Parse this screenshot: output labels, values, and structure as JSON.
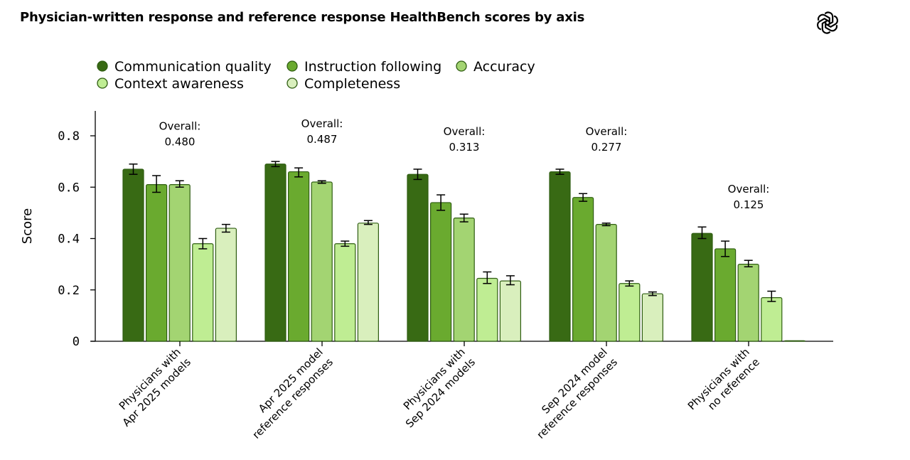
{
  "title": "Physician-written response and reference response HealthBench scores by axis",
  "logo_icon": "openai-logo-icon",
  "colors": {
    "Communication quality": "#386a14",
    "Instruction following": "#6aaa2f",
    "Accuracy": "#a3d472",
    "Context awareness": "#bfed93",
    "Completeness": "#d9efbd",
    "outline": "#2f5d12"
  },
  "chart_data": {
    "type": "bar",
    "title": "Physician-written response and reference response HealthBench scores by axis",
    "ylabel": "Score",
    "xlabel": "",
    "ylim": [
      0,
      0.9
    ],
    "yticks": [
      0,
      0.2,
      0.4,
      0.6,
      0.8
    ],
    "ytick_labels": [
      "0",
      "0.2",
      "0.4",
      "0.6",
      "0.8"
    ],
    "legend_position": "top-left",
    "grid": false,
    "categories": [
      [
        "Physicians with",
        "Apr 2025 models"
      ],
      [
        "Apr 2025 model",
        "reference responses"
      ],
      [
        "Physicians with",
        "Sep 2024 models"
      ],
      [
        "Sep 2024 model",
        "reference responses"
      ],
      [
        "Physicians with",
        "no reference"
      ]
    ],
    "overall_label": "Overall:",
    "overall": [
      "0.480",
      "0.487",
      "0.313",
      "0.277",
      "0.125"
    ],
    "series": [
      {
        "name": "Communication quality",
        "values": [
          0.67,
          0.69,
          0.65,
          0.66,
          0.42
        ],
        "err_low": [
          0.65,
          0.68,
          0.63,
          0.65,
          0.4
        ],
        "err_high": [
          0.69,
          0.7,
          0.67,
          0.67,
          0.445
        ]
      },
      {
        "name": "Instruction following",
        "values": [
          0.61,
          0.66,
          0.54,
          0.56,
          0.36
        ],
        "err_low": [
          0.58,
          0.64,
          0.51,
          0.545,
          0.33
        ],
        "err_high": [
          0.645,
          0.675,
          0.57,
          0.575,
          0.39
        ]
      },
      {
        "name": "Accuracy",
        "values": [
          0.61,
          0.62,
          0.48,
          0.455,
          0.3
        ],
        "err_low": [
          0.6,
          0.615,
          0.465,
          0.45,
          0.29
        ],
        "err_high": [
          0.625,
          0.625,
          0.495,
          0.46,
          0.315
        ]
      },
      {
        "name": "Context awareness",
        "values": [
          0.38,
          0.38,
          0.245,
          0.225,
          0.17
        ],
        "err_low": [
          0.36,
          0.37,
          0.225,
          0.215,
          0.155
        ],
        "err_high": [
          0.4,
          0.39,
          0.27,
          0.235,
          0.195
        ]
      },
      {
        "name": "Completeness",
        "values": [
          0.44,
          0.46,
          0.235,
          0.185,
          0.0
        ],
        "err_low": [
          0.425,
          0.455,
          0.22,
          0.178,
          null
        ],
        "err_high": [
          0.455,
          0.47,
          0.255,
          0.192,
          null
        ]
      }
    ]
  }
}
